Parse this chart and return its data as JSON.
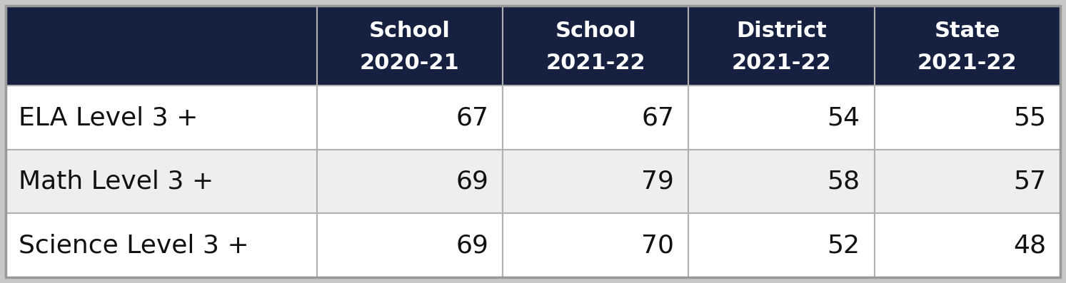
{
  "col_headers": [
    [
      "School",
      "2020-21"
    ],
    [
      "School",
      "2021-22"
    ],
    [
      "District",
      "2021-22"
    ],
    [
      "State",
      "2021-22"
    ]
  ],
  "rows": [
    {
      "label": "ELA Level 3 +",
      "values": [
        67,
        67,
        54,
        55
      ],
      "bg": "#ffffff"
    },
    {
      "label": "Math Level 3 +",
      "values": [
        69,
        79,
        58,
        57
      ],
      "bg": "#eeeeee"
    },
    {
      "label": "Science Level 3 +",
      "values": [
        69,
        70,
        52,
        48
      ],
      "bg": "#ffffff"
    }
  ],
  "header_bg": "#162040",
  "header_text_color": "#ffffff",
  "row_text_color": "#111111",
  "border_color": "#b0b0b0",
  "outer_border_color": "#999999",
  "header_fontsize": 22,
  "row_fontsize": 26,
  "label_fontsize": 26,
  "fig_width": 14.93,
  "fig_height": 3.97,
  "dpi": 100
}
